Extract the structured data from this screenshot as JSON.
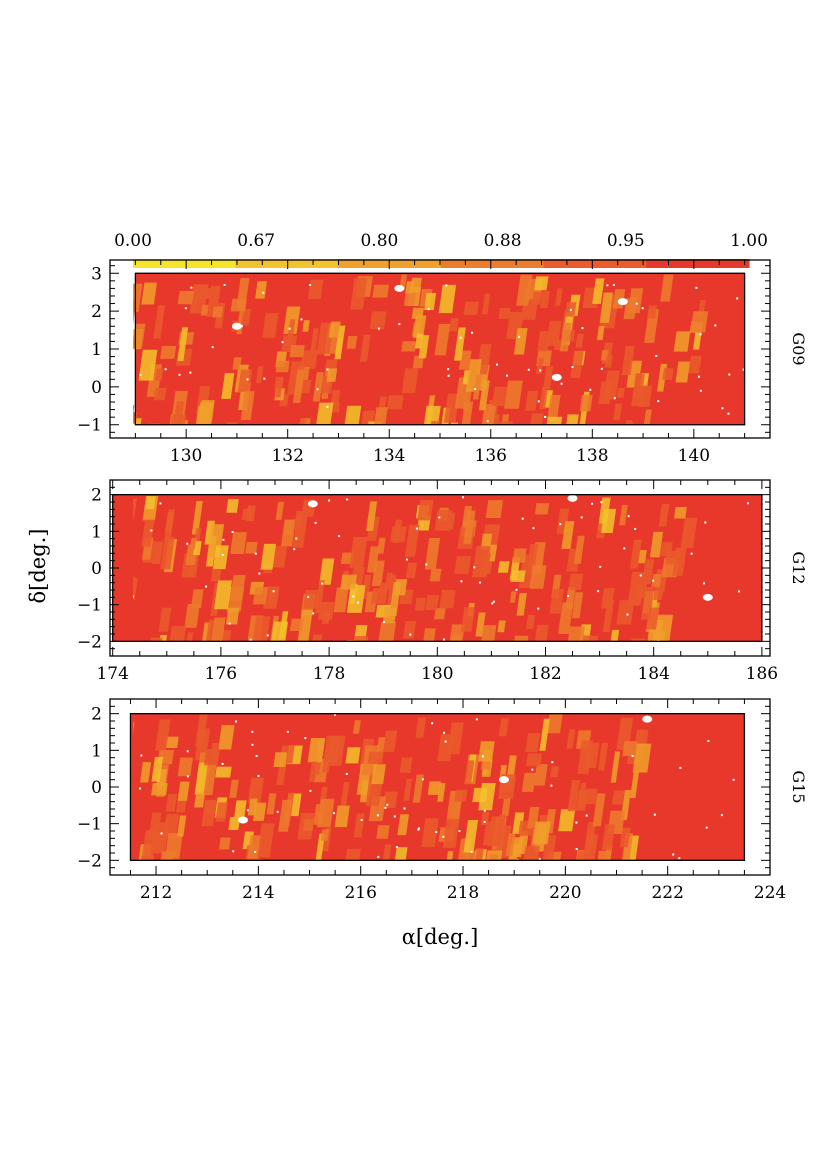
{
  "chart_data": {
    "type": "heatmap",
    "colorbar": {
      "ticks": [
        "0.00",
        "0.67",
        "0.80",
        "0.88",
        "0.95",
        "1.00"
      ],
      "colors": [
        "#f7e42a",
        "#f3c22c",
        "#f0a02c",
        "#ed7d2d",
        "#ea5b2d",
        "#e8382c"
      ]
    },
    "panels": [
      {
        "name": "G09",
        "xlim": [
          128.5,
          141.5
        ],
        "ylim": [
          -1.35,
          3.35
        ],
        "data_xlim": [
          129,
          141
        ],
        "data_ylim": [
          -1,
          3
        ],
        "xticks": [
          "130",
          "132",
          "134",
          "136",
          "138",
          "140"
        ],
        "yticks": [
          "-1",
          "0",
          "1",
          "2",
          "3"
        ],
        "background_value": 0.95,
        "white_spots": [
          [
            138.6,
            2.25
          ],
          [
            134.2,
            2.6
          ],
          [
            131.0,
            1.6
          ],
          [
            137.3,
            0.25
          ]
        ]
      },
      {
        "name": "G12",
        "xlim": [
          173.95,
          186.15
        ],
        "ylim": [
          -2.4,
          2.4
        ],
        "data_xlim": [
          174,
          186
        ],
        "data_ylim": [
          -2,
          2
        ],
        "xticks": [
          "174",
          "176",
          "178",
          "180",
          "182",
          "184",
          "186"
        ],
        "yticks": [
          "-2",
          "-1",
          "0",
          "1",
          "2"
        ],
        "background_value": 0.95,
        "white_spots": [
          [
            177.7,
            1.75
          ],
          [
            174.3,
            -0.78
          ],
          [
            185.0,
            -0.8
          ],
          [
            182.5,
            1.9
          ]
        ]
      },
      {
        "name": "G15",
        "xlim": [
          211.1,
          224.0
        ],
        "ylim": [
          -2.4,
          2.4
        ],
        "data_xlim": [
          211.5,
          223.5
        ],
        "data_ylim": [
          -2,
          2
        ],
        "xticks": [
          "212",
          "214",
          "216",
          "218",
          "220",
          "222",
          "224"
        ],
        "yticks": [
          "-2",
          "-1",
          "0",
          "1",
          "2"
        ],
        "background_value": 0.95,
        "white_spots": [
          [
            221.6,
            1.85
          ],
          [
            218.8,
            0.2
          ],
          [
            213.7,
            -0.9
          ]
        ]
      }
    ],
    "xlabel": "α[deg.]",
    "ylabel": "δ[deg.]"
  }
}
